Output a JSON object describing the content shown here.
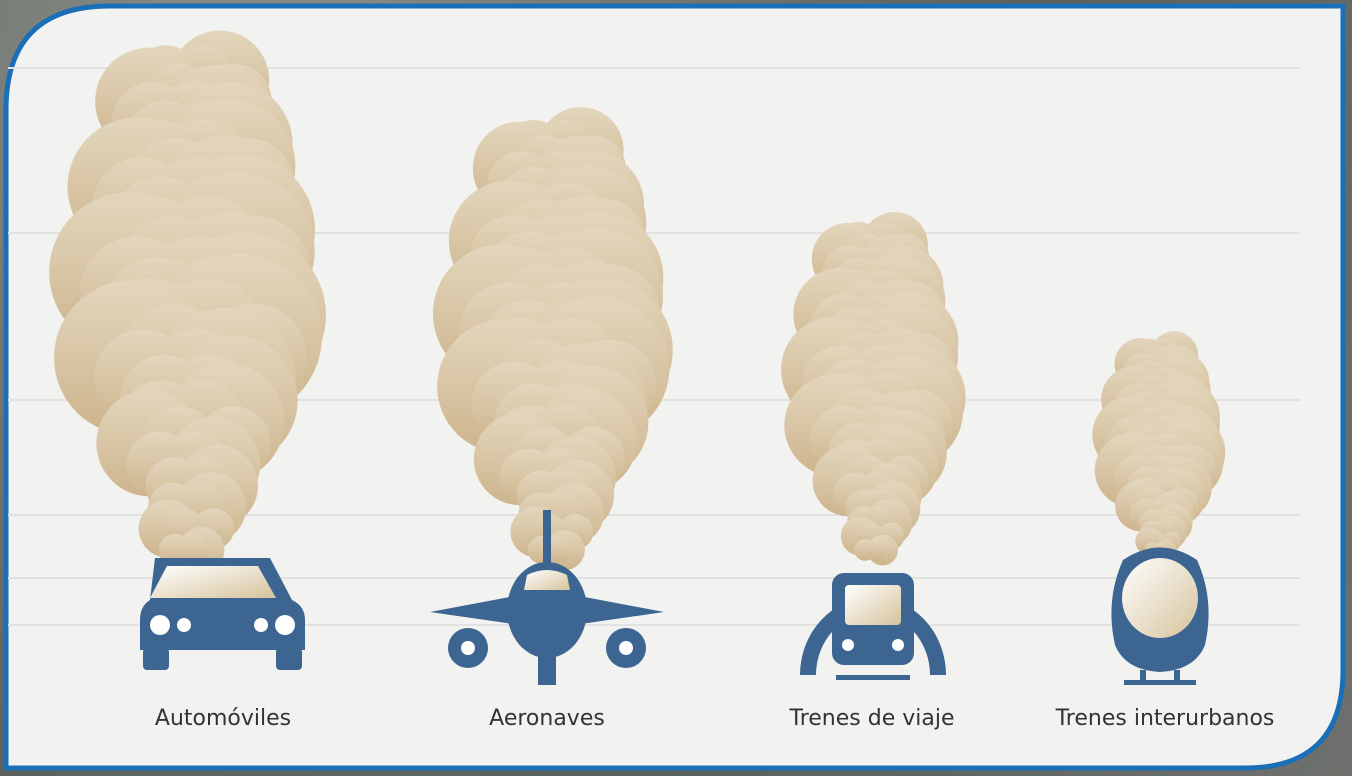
{
  "labels": [
    "Automóviles",
    "Aeronaves",
    "Trenes de viaje",
    "Trenes interurbanos"
  ]
}
